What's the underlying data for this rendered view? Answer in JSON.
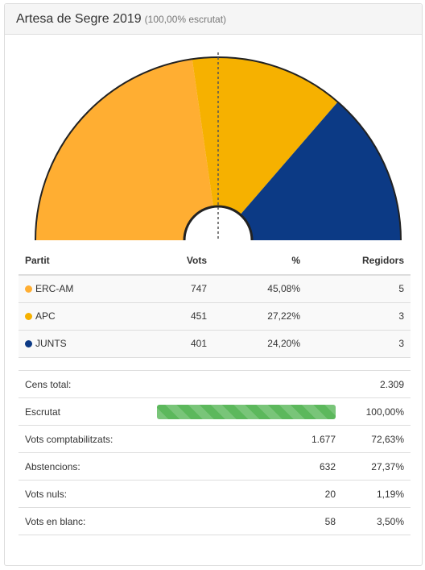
{
  "header": {
    "title": "Artesa de Segre 2019",
    "subtitle": "(100,00% escrutat)"
  },
  "chart_data": {
    "type": "pie",
    "shape": "half-donut (parliament)",
    "categories": [
      "ERC-AM",
      "APC",
      "JUNTS"
    ],
    "values": [
      747,
      451,
      401
    ],
    "seats": [
      5,
      3,
      3
    ],
    "colors": [
      "#FFAE32",
      "#F6B100",
      "#0C3A85"
    ],
    "majority_line": true
  },
  "table": {
    "headers": [
      "Partit",
      "Vots",
      "%",
      "Regidors"
    ],
    "rows": [
      {
        "party": "ERC-AM",
        "color": "#FFAE32",
        "votes": "747",
        "pct": "45,08%",
        "seats": "5"
      },
      {
        "party": "APC",
        "color": "#F6B100",
        "votes": "451",
        "pct": "27,22%",
        "seats": "3"
      },
      {
        "party": "JUNTS",
        "color": "#0C3A85",
        "votes": "401",
        "pct": "24,20%",
        "seats": "3"
      }
    ]
  },
  "summary": {
    "cens_label": "Cens total:",
    "cens_value": "2.309",
    "escrutat_label": "Escrutat",
    "escrutat_value": "100,00%",
    "escrutat_fraction": 1.0,
    "escrutat_color": "#5cb85c",
    "rows": [
      {
        "label": "Vots comptabilitzats:",
        "value": "1.677",
        "pct": "72,63%"
      },
      {
        "label": "Abstencions:",
        "value": "632",
        "pct": "27,37%"
      },
      {
        "label": "Vots nuls:",
        "value": "20",
        "pct": "1,19%"
      },
      {
        "label": "Vots en blanc:",
        "value": "58",
        "pct": "3,50%"
      }
    ]
  }
}
